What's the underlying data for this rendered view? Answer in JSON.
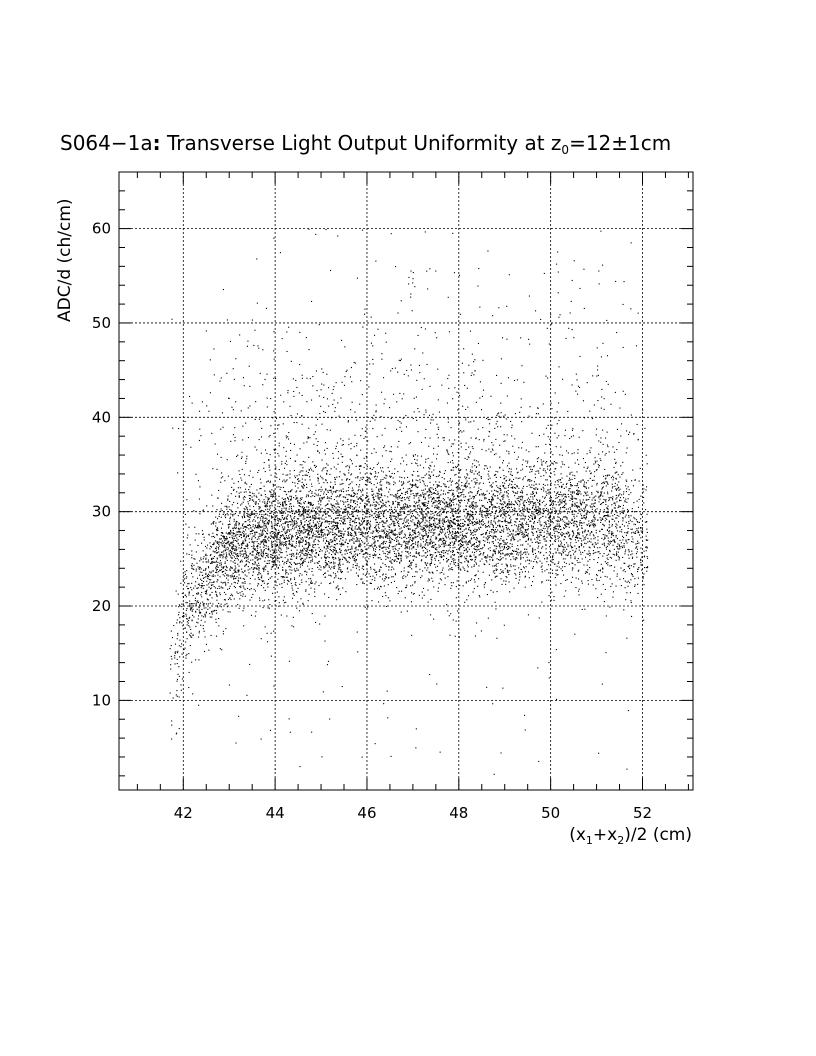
{
  "chart_data": {
    "type": "scatter",
    "title": {
      "main": "S064−1a",
      "colon": ":",
      "text": " Transverse Light Output Uniformity at z",
      "subscript": "0",
      "tail": "=12±1cm"
    },
    "xlabel": {
      "open": "(x",
      "sub1": "1",
      "plus": "+x",
      "sub2": "2",
      "rest": ")/2 (cm)"
    },
    "ylabel": "ADC/d (ch/cm)",
    "xlim": [
      40.6,
      53.1
    ],
    "ylim": [
      0.5,
      66
    ],
    "xticks": [
      42,
      44,
      46,
      48,
      50,
      52
    ],
    "xtick_labels": [
      "42",
      "44",
      "46",
      "48",
      "50",
      "52"
    ],
    "yticks": [
      10,
      20,
      30,
      40,
      50,
      60
    ],
    "ytick_labels": [
      "10",
      "20",
      "30",
      "40",
      "50",
      "60"
    ],
    "grid": true,
    "legend": "none",
    "point_color": "#000000",
    "density_profile": {
      "x_range": [
        41.7,
        52.1
      ],
      "x": [
        41.8,
        42.0,
        42.5,
        43.0,
        43.5,
        44.0,
        45.0,
        46.0,
        47.0,
        48.0,
        49.0,
        50.0,
        51.0,
        51.5,
        52.0
      ],
      "mean_y": [
        14,
        18,
        23,
        26,
        27,
        27.5,
        28,
        28.5,
        28.5,
        28.5,
        29,
        29,
        29,
        28,
        27
      ],
      "relative_density": [
        0.25,
        0.4,
        0.6,
        0.85,
        1.0,
        1.0,
        1.0,
        0.95,
        0.95,
        0.95,
        0.9,
        0.8,
        0.7,
        0.55,
        0.35
      ]
    }
  }
}
